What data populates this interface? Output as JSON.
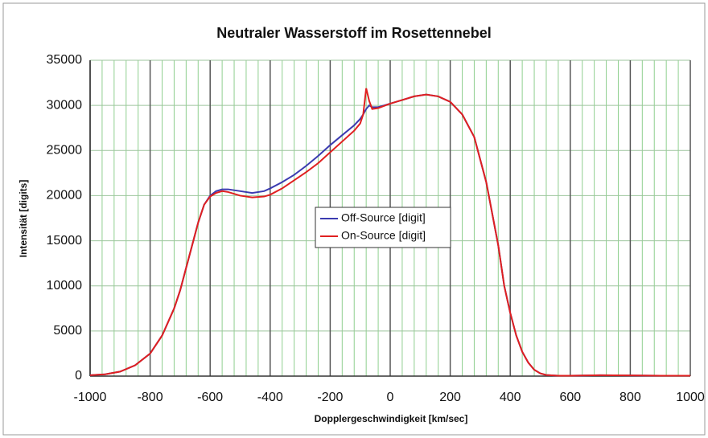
{
  "chart_data": {
    "type": "line",
    "title": "Neutraler Wasserstoff im Rosettennebel",
    "xlabel": "Dopplergeschwindigkeit [km/sec]",
    "ylabel": "Intensität [digits]",
    "x": [
      -1000,
      -950,
      -900,
      -850,
      -800,
      -760,
      -720,
      -700,
      -680,
      -660,
      -640,
      -620,
      -600,
      -580,
      -560,
      -540,
      -500,
      -460,
      -420,
      -400,
      -360,
      -320,
      -280,
      -240,
      -200,
      -160,
      -120,
      -100,
      -90,
      -80,
      -70,
      -60,
      -40,
      0,
      40,
      80,
      120,
      160,
      200,
      240,
      280,
      320,
      360,
      380,
      400,
      420,
      440,
      460,
      480,
      500,
      520,
      560,
      600,
      700,
      800,
      900,
      1000
    ],
    "series": [
      {
        "name": "Off-Source [digit]",
        "color": "#3b3bb0",
        "values": [
          100,
          200,
          500,
          1200,
          2500,
          4500,
          7500,
          9500,
          12000,
          14500,
          17000,
          19000,
          20000,
          20500,
          20700,
          20700,
          20500,
          20300,
          20500,
          20800,
          21500,
          22300,
          23300,
          24400,
          25600,
          26700,
          27800,
          28500,
          29000,
          29600,
          30000,
          29800,
          29800,
          30200,
          30600,
          31000,
          31200,
          31000,
          30400,
          29000,
          26500,
          21500,
          14500,
          10000,
          7000,
          4500,
          2700,
          1500,
          700,
          300,
          120,
          50,
          50,
          100,
          80,
          50,
          50
        ]
      },
      {
        "name": "On-Source [digit]",
        "color": "#e02020",
        "values": [
          100,
          200,
          500,
          1200,
          2500,
          4500,
          7500,
          9500,
          12000,
          14500,
          17000,
          19000,
          19900,
          20300,
          20500,
          20400,
          20000,
          19800,
          19900,
          20100,
          20800,
          21700,
          22600,
          23600,
          24800,
          26000,
          27200,
          28000,
          29000,
          31900,
          30500,
          29600,
          29700,
          30200,
          30600,
          31000,
          31200,
          31000,
          30400,
          29000,
          26500,
          21500,
          14500,
          10000,
          7000,
          4500,
          2700,
          1500,
          700,
          300,
          120,
          50,
          50,
          100,
          80,
          50,
          50
        ]
      }
    ],
    "xlim": [
      -1000,
      1000
    ],
    "xticks": [
      -1000,
      -800,
      -600,
      -400,
      -200,
      0,
      200,
      400,
      600,
      800,
      1000
    ],
    "xminorticks": [
      -960,
      -920,
      -880,
      -840,
      -760,
      -720,
      -680,
      -640,
      -560,
      -520,
      -480,
      -440,
      -360,
      -320,
      -280,
      -240,
      -160,
      -120,
      -80,
      -40,
      40,
      80,
      120,
      160,
      240,
      280,
      320,
      360,
      440,
      480,
      520,
      560,
      640,
      680,
      720,
      760,
      840,
      880,
      920,
      960
    ],
    "ylim": [
      0,
      35000
    ],
    "yticks": [
      0,
      5000,
      10000,
      15000,
      20000,
      25000,
      30000,
      35000
    ],
    "grid": true
  }
}
